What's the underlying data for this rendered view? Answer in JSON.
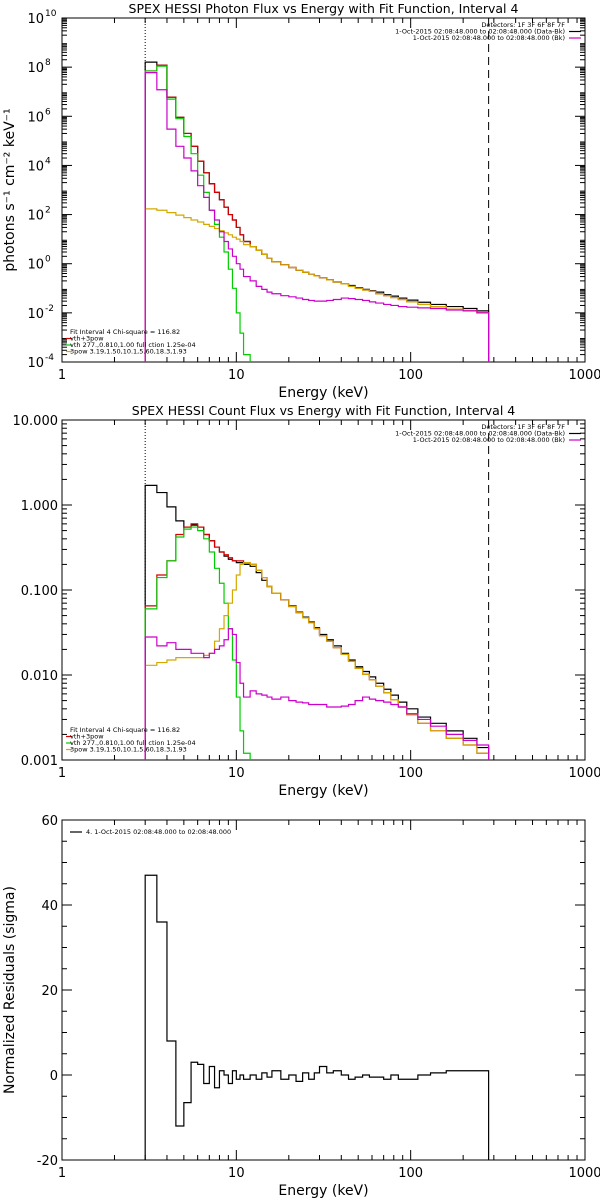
{
  "chart_data": [
    {
      "type": "line",
      "title": "SPEX HESSI Photon Flux vs Energy with Fit Function, Interval 4",
      "xlabel": "Energy (keV)",
      "ylabel": "photons s⁻¹ cm⁻² keV⁻¹",
      "xscale": "log",
      "yscale": "log",
      "xlim": [
        1,
        1000
      ],
      "ylim": [
        0.0001,
        10000000000
      ],
      "xticks": [
        {
          "v": 1,
          "label": "1"
        },
        {
          "v": 10,
          "label": "10"
        },
        {
          "v": 100,
          "label": "100"
        },
        {
          "v": 1000,
          "label": "1000"
        }
      ],
      "yticks": [
        {
          "v": 0.0001,
          "label": "10",
          "exp": "-4"
        },
        {
          "v": 0.01,
          "label": "10",
          "exp": "-2"
        },
        {
          "v": 1,
          "label": "10",
          "exp": "0"
        },
        {
          "v": 100,
          "label": "10",
          "exp": "2"
        },
        {
          "v": 10000,
          "label": "10",
          "exp": "4"
        },
        {
          "v": 1000000,
          "label": "10",
          "exp": "6"
        },
        {
          "v": 100000000,
          "label": "10",
          "exp": "8"
        },
        {
          "v": 10000000000,
          "label": "10",
          "exp": "10"
        }
      ],
      "vlines": [
        3,
        280
      ],
      "legend_right": [
        {
          "text": "Detectors: 1F 3F 6F 8F 7F",
          "color": "#000000"
        },
        {
          "text": "1-Oct-2015 02:08:48.000 to 02:08:48.000 (Data-Bk)",
          "color": "#000000"
        },
        {
          "text": "1-Oct-2015 02:08:48.000 to 02:08:48.000 (Bk)",
          "color": "#cc00cc"
        }
      ],
      "legend_left": [
        {
          "text": "Fit Interval  4    Chi-square = 116.82",
          "color": "#000000"
        },
        {
          "text": "vth+3pow",
          "color": "#d40000"
        },
        {
          "text": "vth 277.,0.810,1.00  full ction 1.25e-04",
          "color": "#00cc00"
        },
        {
          "text": "3pow 3.19,1.50,10.1,5.60,18.3,1.93",
          "color": "#d4a800"
        }
      ],
      "edges": [
        3.0,
        3.5,
        4.0,
        4.5,
        5.0,
        5.5,
        6.0,
        6.5,
        7.0,
        7.5,
        8.0,
        8.5,
        9.0,
        9.5,
        10.0,
        10.5,
        11,
        12,
        13,
        14,
        15,
        16,
        18,
        20,
        22,
        24,
        26,
        28,
        30,
        33,
        36,
        40,
        44,
        48,
        53,
        58,
        63,
        70,
        77,
        85,
        95,
        110,
        130,
        160,
        200,
        240,
        280
      ],
      "series": [
        {
          "name": "Data-Bk",
          "color": "#000000",
          "values": [
            160000000.0,
            120000000.0,
            6000000.0,
            900000.0,
            200000.0,
            60000.0,
            15000.0,
            5000.0,
            1800,
            800,
            400,
            200,
            100,
            60,
            30,
            15,
            8,
            5,
            3.5,
            2.4,
            1.7,
            1.2,
            0.9,
            0.7,
            0.55,
            0.45,
            0.38,
            0.32,
            0.27,
            0.22,
            0.18,
            0.15,
            0.13,
            0.105,
            0.09,
            0.08,
            0.07,
            0.055,
            0.048,
            0.04,
            0.033,
            0.027,
            0.022,
            0.018,
            0.015,
            0.012
          ]
        },
        {
          "name": "vth+3pow",
          "color": "#d40000",
          "values": [
            70000000.0,
            120000000.0,
            6000000.0,
            900000.0,
            200000.0,
            60000.0,
            15000.0,
            5000.0,
            1800,
            800,
            400,
            200,
            100,
            60,
            30,
            15,
            8,
            5,
            3.5,
            2.4,
            1.7,
            1.2,
            0.9,
            0.7,
            0.55,
            0.45,
            0.38,
            0.32,
            0.27,
            0.22,
            0.18,
            0.15,
            0.12,
            0.1,
            0.085,
            0.075,
            0.06,
            0.05,
            0.042,
            0.035,
            0.028,
            0.022,
            0.018,
            0.014,
            0.012,
            0.01
          ]
        },
        {
          "name": "vth",
          "color": "#00cc00",
          "values": [
            70000000.0,
            110000000.0,
            5000000.0,
            800000.0,
            150000.0,
            30000.0,
            4000.0,
            800,
            150,
            40,
            12,
            3,
            0.6,
            0.1,
            0.01,
            0.0015,
            0.0002,
            1e-05
          ]
        },
        {
          "name": "3pow",
          "color": "#d4a800",
          "values": [
            170,
            150,
            120,
            95,
            75,
            60,
            50,
            40,
            33,
            27,
            22,
            18,
            15,
            12,
            10,
            8,
            6,
            5,
            3.5,
            2.4,
            1.7,
            1.2,
            0.9,
            0.7,
            0.55,
            0.45,
            0.38,
            0.32,
            0.27,
            0.22,
            0.18,
            0.15,
            0.12,
            0.1,
            0.085,
            0.075,
            0.06,
            0.05,
            0.042,
            0.035,
            0.028,
            0.022,
            0.018,
            0.014,
            0.012,
            0.01
          ]
        },
        {
          "name": "Bk",
          "color": "#cc00cc",
          "values": [
            60000000.0,
            12000000.0,
            300000.0,
            60000.0,
            20000.0,
            6000.0,
            1500,
            500,
            150,
            60,
            20,
            8,
            4,
            2,
            1,
            0.6,
            0.3,
            0.2,
            0.12,
            0.09,
            0.07,
            0.06,
            0.05,
            0.045,
            0.04,
            0.035,
            0.032,
            0.03,
            0.03,
            0.032,
            0.035,
            0.04,
            0.038,
            0.035,
            0.032,
            0.028,
            0.025,
            0.022,
            0.02,
            0.018,
            0.017,
            0.016,
            0.015,
            0.013,
            0.012,
            0.01
          ]
        }
      ]
    },
    {
      "type": "line",
      "title": "SPEX HESSI Count Flux vs Energy with Fit Function, Interval 4",
      "xlabel": "Energy (keV)",
      "ylabel": "",
      "xscale": "log",
      "yscale": "log",
      "xlim": [
        1,
        1000
      ],
      "ylim": [
        0.001,
        10
      ],
      "xticks": [
        {
          "v": 1,
          "label": "1"
        },
        {
          "v": 10,
          "label": "10"
        },
        {
          "v": 100,
          "label": "100"
        },
        {
          "v": 1000,
          "label": "1000"
        }
      ],
      "yticks": [
        {
          "v": 0.001,
          "label": "0.001"
        },
        {
          "v": 0.01,
          "label": "0.010"
        },
        {
          "v": 0.1,
          "label": "0.100"
        },
        {
          "v": 1,
          "label": "1.000"
        },
        {
          "v": 10,
          "label": "10.000"
        }
      ],
      "vlines": [
        3,
        280
      ],
      "legend_right": [
        {
          "text": "Detectors: 1F 3F 6F 8F 7F",
          "color": "#000000"
        },
        {
          "text": "1-Oct-2015 02:08:48.000 to 02:08:48.000 (Data-Bk)",
          "color": "#000000"
        },
        {
          "text": "1-Oct-2015 02:08:48.000 to 02:08:48.000 (Bk)",
          "color": "#cc00cc"
        }
      ],
      "legend_left": [
        {
          "text": "Fit Interval  4    Chi-square = 116.82",
          "color": "#000000"
        },
        {
          "text": "vth+3pow",
          "color": "#d40000"
        },
        {
          "text": "vth 277.,0.810,1.00  full ction 1.25e-04",
          "color": "#00cc00"
        },
        {
          "text": "3pow 3.19,1.50,10.1,5.60,18.3,1.93",
          "color": "#d4a800"
        }
      ],
      "edges": [
        3.0,
        3.5,
        4.0,
        4.5,
        5.0,
        5.5,
        6.0,
        6.5,
        7.0,
        7.5,
        8.0,
        8.5,
        9.0,
        9.5,
        10.0,
        10.5,
        11,
        12,
        13,
        14,
        15,
        16,
        18,
        20,
        22,
        24,
        26,
        28,
        30,
        33,
        36,
        40,
        44,
        48,
        53,
        58,
        63,
        70,
        77,
        85,
        95,
        110,
        130,
        160,
        200,
        240,
        280
      ],
      "series": [
        {
          "name": "Data-Bk",
          "color": "#000000",
          "values": [
            1.7,
            1.4,
            0.95,
            0.65,
            0.55,
            0.58,
            0.55,
            0.45,
            0.38,
            0.32,
            0.28,
            0.25,
            0.23,
            0.22,
            0.21,
            0.21,
            0.2,
            0.19,
            0.16,
            0.13,
            0.11,
            0.092,
            0.077,
            0.065,
            0.055,
            0.048,
            0.042,
            0.036,
            0.03,
            0.026,
            0.022,
            0.018,
            0.015,
            0.0125,
            0.011,
            0.0095,
            0.008,
            0.0068,
            0.0058,
            0.0048,
            0.004,
            0.0032,
            0.0027,
            0.0022,
            0.0018,
            0.0014
          ]
        },
        {
          "name": "vth+3pow",
          "color": "#d40000",
          "values": [
            0.065,
            0.15,
            0.22,
            0.45,
            0.55,
            0.6,
            0.55,
            0.45,
            0.38,
            0.32,
            0.28,
            0.26,
            0.24,
            0.22,
            0.22,
            0.22,
            0.21,
            0.2,
            0.17,
            0.14,
            0.11,
            0.092,
            0.077,
            0.064,
            0.054,
            0.047,
            0.041,
            0.035,
            0.029,
            0.025,
            0.021,
            0.0175,
            0.0145,
            0.012,
            0.0102,
            0.0088,
            0.0074,
            0.0062,
            0.0051,
            0.0042,
            0.0034,
            0.0027,
            0.0022,
            0.0018,
            0.0015,
            0.0012
          ]
        },
        {
          "name": "vth",
          "color": "#00cc00",
          "values": [
            0.06,
            0.14,
            0.22,
            0.42,
            0.52,
            0.55,
            0.5,
            0.4,
            0.28,
            0.18,
            0.12,
            0.07,
            0.035,
            0.015,
            0.0055,
            0.0022,
            0.0012,
            0.0006
          ]
        },
        {
          "name": "3pow",
          "color": "#d4a800",
          "values": [
            0.013,
            0.014,
            0.015,
            0.016,
            0.016,
            0.016,
            0.016,
            0.017,
            0.018,
            0.025,
            0.035,
            0.05,
            0.07,
            0.1,
            0.15,
            0.2,
            0.21,
            0.2,
            0.17,
            0.14,
            0.11,
            0.092,
            0.077,
            0.064,
            0.054,
            0.047,
            0.041,
            0.035,
            0.029,
            0.025,
            0.021,
            0.0175,
            0.0145,
            0.012,
            0.0102,
            0.0088,
            0.0074,
            0.0062,
            0.0051,
            0.0042,
            0.0034,
            0.0027,
            0.0022,
            0.0018,
            0.0015,
            0.0012
          ]
        },
        {
          "name": "Bk",
          "color": "#cc00cc",
          "values": [
            0.028,
            0.022,
            0.024,
            0.02,
            0.02,
            0.018,
            0.018,
            0.016,
            0.018,
            0.02,
            0.022,
            0.026,
            0.035,
            0.03,
            0.014,
            0.008,
            0.0055,
            0.0065,
            0.006,
            0.0058,
            0.0055,
            0.0052,
            0.0055,
            0.005,
            0.0048,
            0.0047,
            0.0045,
            0.0045,
            0.0045,
            0.0042,
            0.0042,
            0.0043,
            0.0045,
            0.005,
            0.0055,
            0.0052,
            0.005,
            0.0048,
            0.0045,
            0.0042,
            0.0035,
            0.003,
            0.0025,
            0.002,
            0.0017,
            0.0015
          ]
        }
      ]
    },
    {
      "type": "line",
      "title": "",
      "xlabel": "Energy (keV)",
      "ylabel": "Normalized Residuals (sigma)",
      "xscale": "log",
      "yscale": "linear",
      "xlim": [
        1,
        1000
      ],
      "ylim": [
        -20,
        60
      ],
      "xticks": [
        {
          "v": 1,
          "label": "1"
        },
        {
          "v": 10,
          "label": "10"
        },
        {
          "v": 100,
          "label": "100"
        },
        {
          "v": 1000,
          "label": "1000"
        }
      ],
      "yticks": [
        {
          "v": -20,
          "label": "-20"
        },
        {
          "v": 0,
          "label": "0"
        },
        {
          "v": 20,
          "label": "20"
        },
        {
          "v": 40,
          "label": "40"
        },
        {
          "v": 60,
          "label": "60"
        }
      ],
      "vlines": [],
      "legend_right": [],
      "legend_left": [
        {
          "text": "4.  1-Oct-2015 02:08:48.000 to 02:08:48.000",
          "color": "#000000"
        }
      ],
      "edges": [
        3.0,
        3.5,
        4.0,
        4.5,
        5.0,
        5.5,
        6.0,
        6.5,
        7.0,
        7.5,
        8.0,
        8.5,
        9.0,
        9.5,
        10.0,
        10.5,
        11,
        12,
        13,
        14,
        15,
        16,
        18,
        20,
        22,
        24,
        26,
        28,
        30,
        33,
        36,
        40,
        44,
        48,
        53,
        58,
        63,
        70,
        77,
        85,
        95,
        110,
        130,
        160,
        200,
        240,
        280
      ],
      "series": [
        {
          "name": "4.  1-Oct-2015 02:08:48.000 to 02:08:48.000",
          "color": "#000000",
          "values": [
            47,
            36,
            8,
            -12,
            -6.5,
            3,
            2.5,
            -2,
            2,
            -3,
            1,
            0,
            -2,
            1,
            -1,
            0,
            -1,
            0,
            -1,
            0.5,
            -0.5,
            1,
            -1,
            0,
            -1.5,
            0.5,
            -1,
            0.5,
            2,
            0.5,
            1,
            0,
            -1,
            -0.5,
            0,
            -0.5,
            -0.5,
            -1,
            0,
            -1,
            -1,
            0,
            0.5,
            1,
            1,
            1
          ]
        }
      ]
    }
  ]
}
